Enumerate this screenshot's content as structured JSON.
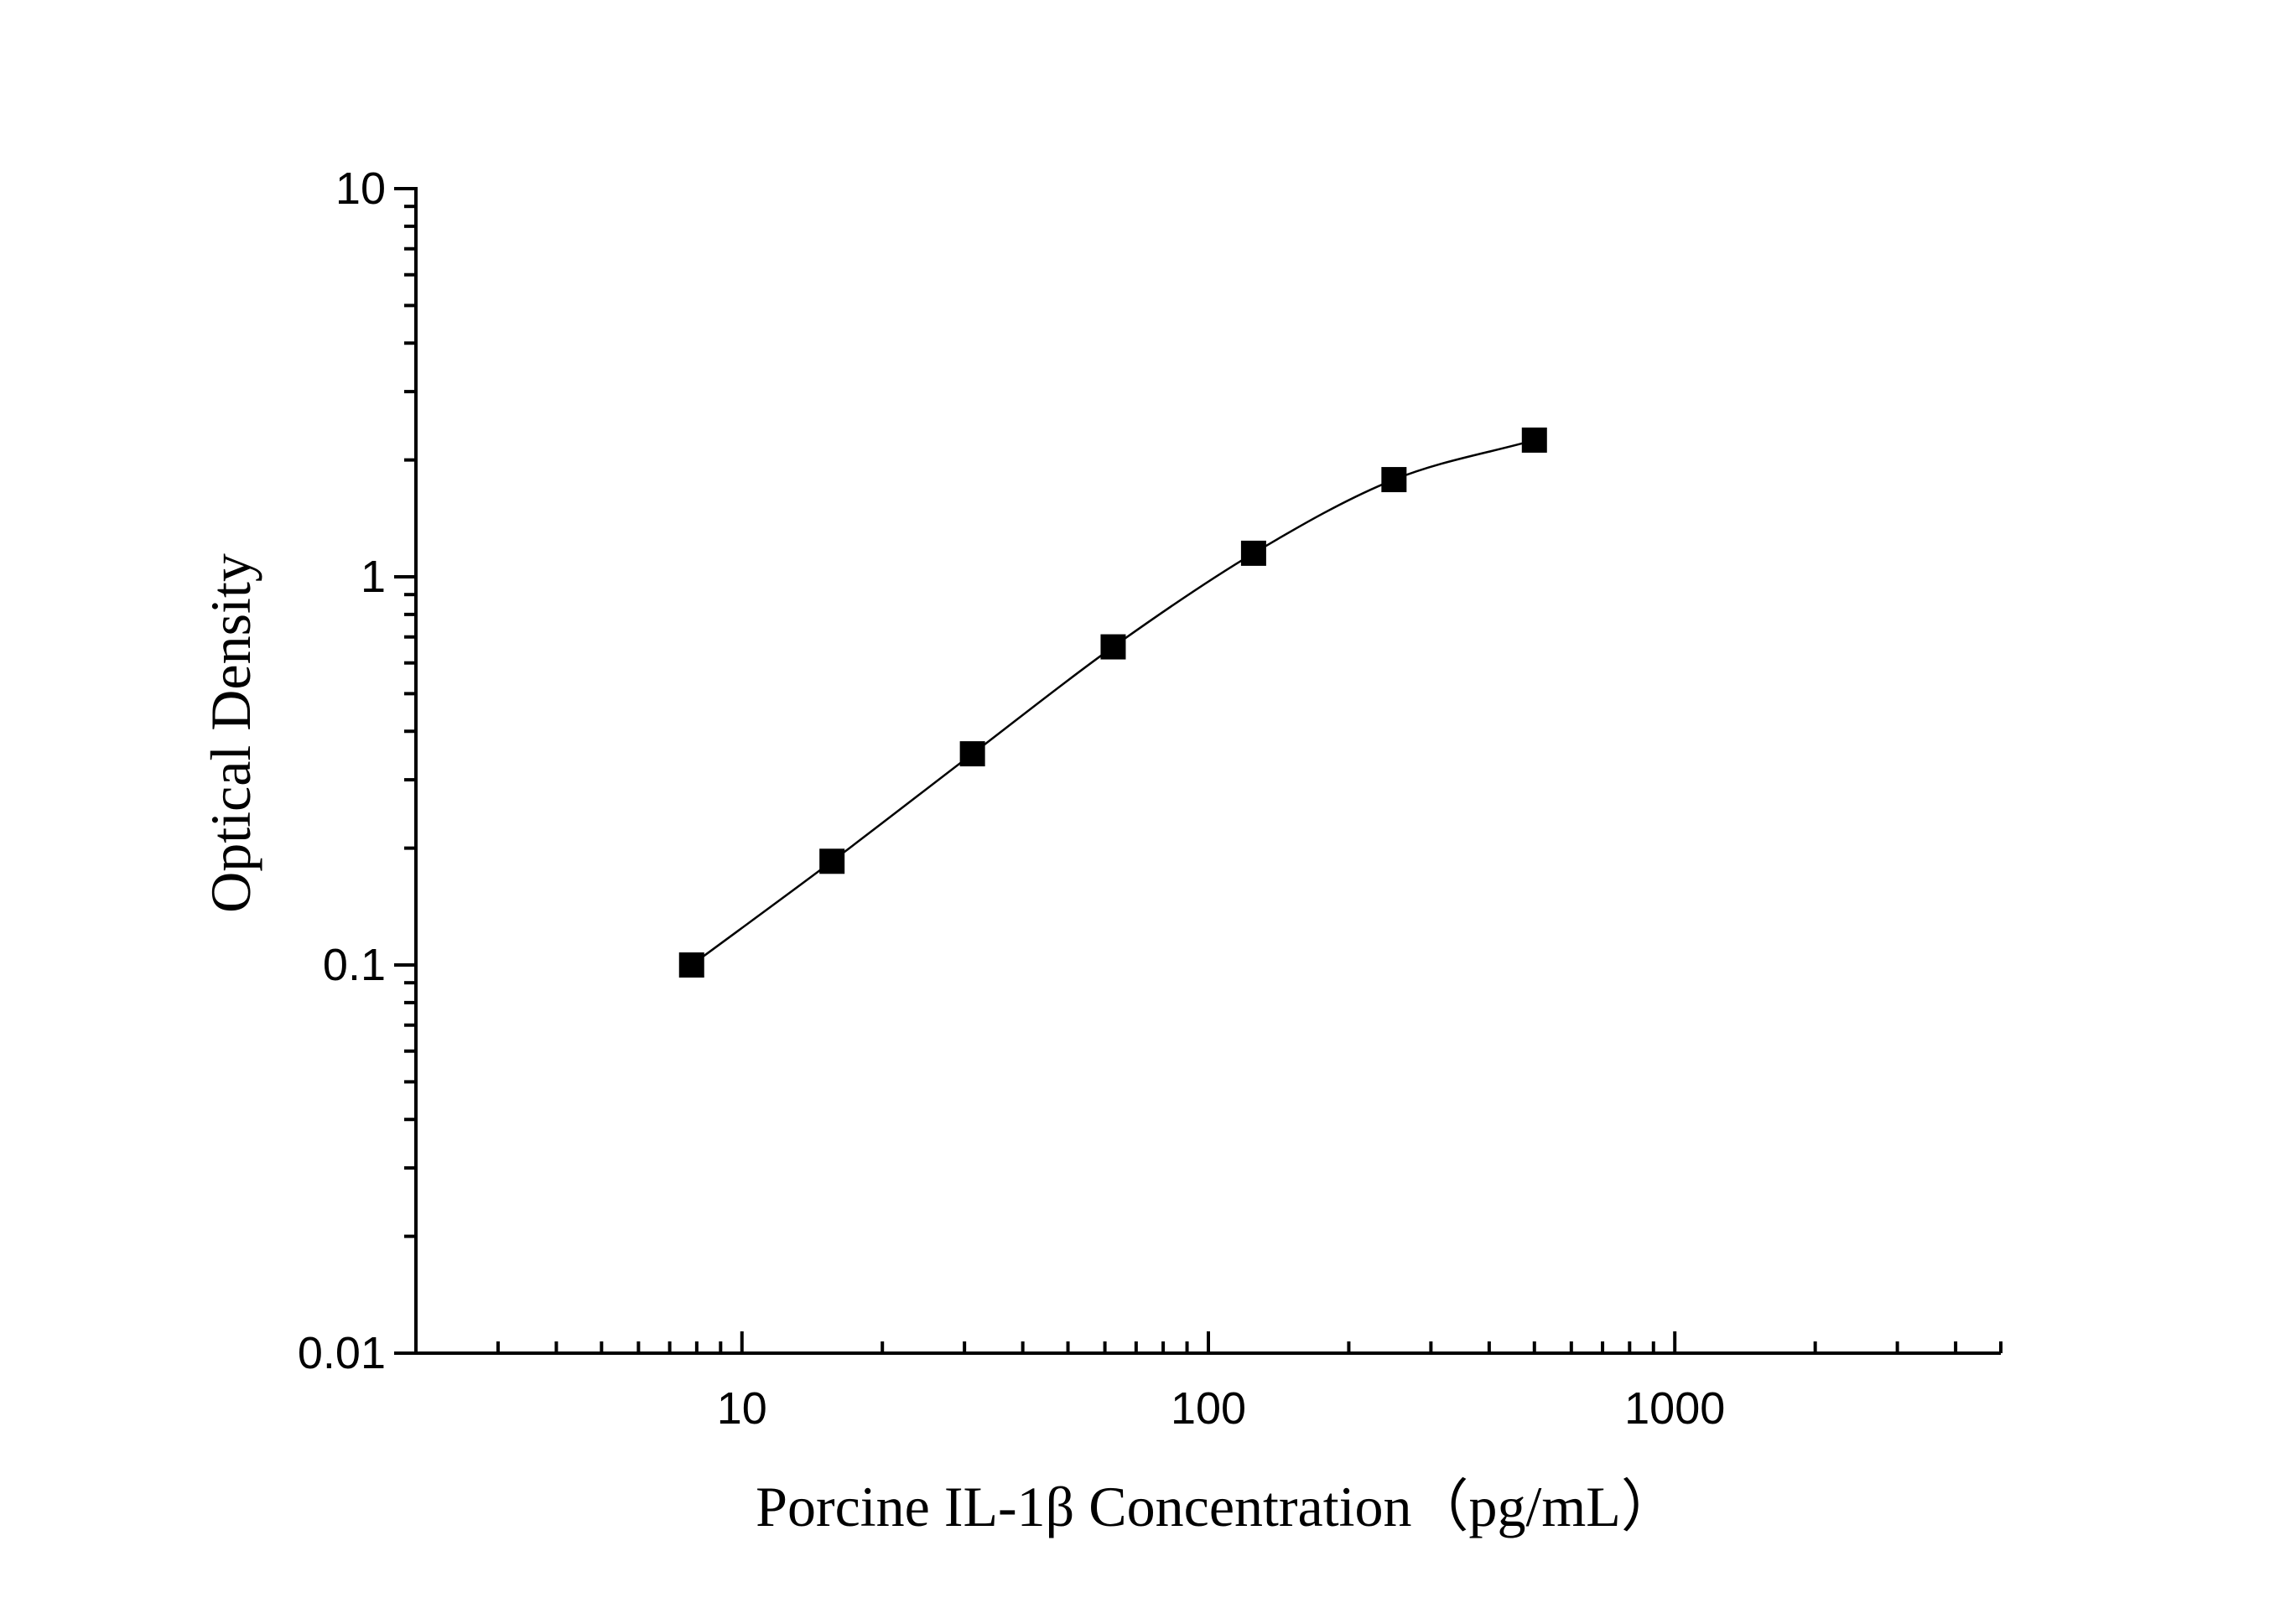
{
  "chart_data": {
    "type": "scatter",
    "xlabel": "Porcine IL-1β Concentration（pg/mL）",
    "ylabel": "Optical Density",
    "xscale": "log",
    "yscale": "log",
    "xlim": [
      2,
      5000
    ],
    "ylim": [
      0.01,
      10
    ],
    "x_ticks": [
      {
        "value": 10,
        "label": "10"
      },
      {
        "value": 100,
        "label": "100"
      },
      {
        "value": 1000,
        "label": "1000"
      }
    ],
    "y_ticks": [
      {
        "value": 0.01,
        "label": "0.01"
      },
      {
        "value": 0.1,
        "label": "0.1"
      },
      {
        "value": 1,
        "label": "1"
      },
      {
        "value": 10,
        "label": "10"
      }
    ],
    "grid": false,
    "legend": "none",
    "series": [
      {
        "x": [
          7.8,
          15.6,
          31.2,
          62.5,
          125,
          250,
          500
        ],
        "y": [
          0.1,
          0.185,
          0.35,
          0.66,
          1.15,
          1.78,
          2.25
        ],
        "marker": "square",
        "color": "#000000",
        "fit_curve": true
      }
    ]
  }
}
